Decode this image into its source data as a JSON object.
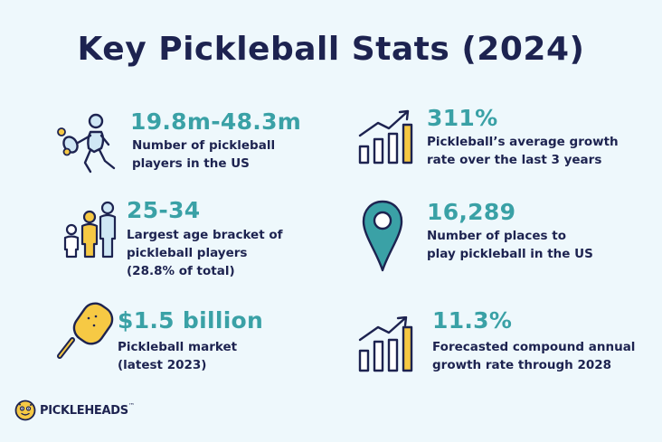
{
  "title": "Key Pickleball Stats (2024)",
  "accent_color": "#3aa1a6",
  "text_color": "#1d2350",
  "highlight_color": "#f6c944",
  "stats": [
    {
      "value": "19.8m-48.3m",
      "desc_lines": [
        "Number of pickleball",
        "players in the US"
      ],
      "icon": "player-swinging-paddle-icon"
    },
    {
      "value": "311%",
      "desc_lines": [
        "Pickleball’s average growth",
        "rate over the last 3 years"
      ],
      "icon": "growth-bar-chart-icon"
    },
    {
      "value": "25-34",
      "desc_lines": [
        "Largest age bracket of",
        "pickleball players",
        "(28.8% of total)"
      ],
      "icon": "people-group-icon"
    },
    {
      "value": "16,289",
      "desc_lines": [
        "Number of places to",
        "play pickleball in the US"
      ],
      "icon": "map-pin-icon"
    },
    {
      "value": "$1.5 billion",
      "desc_lines": [
        "Pickleball market",
        "(latest 2023)"
      ],
      "icon": "pickleball-paddle-icon"
    },
    {
      "value": "11.3%",
      "desc_lines": [
        "Forecasted compound annual",
        "growth rate through 2028"
      ],
      "icon": "forecast-bar-chart-icon"
    }
  ],
  "brand": {
    "name": "PICKLEHEADS",
    "tm": "™"
  }
}
